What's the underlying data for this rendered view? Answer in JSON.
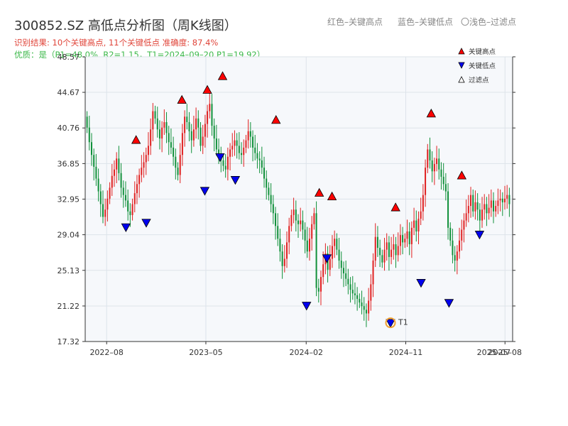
{
  "header": {
    "title": "300852.SZ 高低点分析图（周K线图）",
    "hint_red": "红色–关键高点",
    "hint_blue": "蓝色–关键低点",
    "hint_light": "〇浅色–过滤点",
    "result_line": "识别结果: 10个关键高点, 11个关键低点  准确度: 87.4%",
    "quality_line": "优质：是（P1=48.0%, R2=1.15，T1=2024–09–20 P1=19.92）"
  },
  "colors": {
    "up": "#e02020",
    "down": "#10903a",
    "high_marker": "#ff0000",
    "low_marker": "#0000ee",
    "t1": "#f0a030"
  },
  "chart_data": {
    "type": "candlestick",
    "title": "300852.SZ 高低点分析图（周K线图）",
    "ylim": [
      17.32,
      48.57
    ],
    "y_ticks": [
      "17.32",
      "21.22",
      "25.13",
      "29.04",
      "32.95",
      "36.85",
      "40.76",
      "44.67",
      "48.57"
    ],
    "x_ticks": [
      "2022–08",
      "2023–05",
      "2024–02",
      "2024–11",
      "2025–08"
    ],
    "x_tick_extra": "2025–07",
    "legend": {
      "position": "top-right",
      "items": [
        {
          "label": "关键高点",
          "marker": "up-triangle",
          "color": "#ff0000"
        },
        {
          "label": "关键低点",
          "marker": "down-triangle",
          "color": "#0000ee"
        },
        {
          "label": "过滤点",
          "marker": "up-triangle-hollow",
          "color": "#ffffff"
        }
      ]
    },
    "key_highs": [
      {
        "date": "2022-10-21",
        "value": 38.9
      },
      {
        "date": "2023-02-24",
        "value": 43.3
      },
      {
        "date": "2023-05-05",
        "value": 44.4
      },
      {
        "date": "2023-06-16",
        "value": 45.9
      },
      {
        "date": "2023-11-10",
        "value": 41.1
      },
      {
        "date": "2024-03-08",
        "value": 33.1
      },
      {
        "date": "2024-04-12",
        "value": 32.7
      },
      {
        "date": "2024-10-04",
        "value": 31.5
      },
      {
        "date": "2025-01-10",
        "value": 41.8
      },
      {
        "date": "2025-04-04",
        "value": 35.0
      }
    ],
    "key_lows": [
      {
        "date": "2022-09-23",
        "value": 30.4
      },
      {
        "date": "2022-11-18",
        "value": 30.9
      },
      {
        "date": "2023-04-28",
        "value": 34.4
      },
      {
        "date": "2023-06-09",
        "value": 38.1
      },
      {
        "date": "2023-07-21",
        "value": 35.6
      },
      {
        "date": "2024-02-02",
        "value": 21.8
      },
      {
        "date": "2024-03-29",
        "value": 27.0
      },
      {
        "date": "2024-09-20",
        "value": 19.9
      },
      {
        "date": "2024-12-13",
        "value": 24.3
      },
      {
        "date": "2025-02-28",
        "value": 22.1
      },
      {
        "date": "2025-05-23",
        "value": 29.6
      }
    ],
    "t1_point": {
      "label": "T1",
      "date": "2024-09-20",
      "value": 19.92
    },
    "candles_close": [
      40.8,
      39.2,
      37.8,
      36.5,
      35.2,
      33.8,
      32.4,
      31.0,
      31.8,
      33.0,
      34.2,
      35.5,
      36.2,
      37.4,
      35.8,
      34.2,
      33.4,
      32.8,
      31.6,
      31.2,
      32.4,
      33.6,
      34.6,
      35.6,
      36.4,
      37.0,
      37.8,
      38.8,
      40.6,
      42.6,
      41.8,
      40.6,
      39.6,
      40.8,
      41.4,
      40.2,
      39.2,
      38.6,
      37.6,
      36.4,
      35.6,
      37.8,
      40.2,
      42.0,
      41.4,
      40.4,
      39.4,
      40.6,
      41.8,
      40.8,
      38.8,
      39.8,
      41.2,
      42.6,
      43.4,
      41.0,
      39.6,
      38.4,
      37.8,
      37.2,
      36.6,
      36.2,
      37.6,
      38.4,
      38.8,
      39.4,
      38.8,
      38.0,
      37.8,
      38.6,
      39.4,
      40.4,
      39.8,
      38.6,
      38.0,
      37.4,
      37.2,
      36.4,
      35.2,
      34.2,
      33.4,
      32.4,
      31.4,
      30.0,
      28.6,
      27.2,
      25.6,
      26.4,
      28.2,
      30.0,
      31.2,
      31.8,
      30.6,
      30.2,
      30.6,
      29.6,
      28.4,
      27.2,
      28.6,
      30.2,
      31.4,
      23.2,
      22.8,
      24.4,
      25.8,
      27.0,
      25.2,
      26.4,
      27.8,
      28.6,
      27.4,
      26.2,
      25.4,
      24.8,
      24.2,
      23.6,
      23.0,
      22.6,
      22.4,
      22.0,
      21.6,
      21.2,
      20.8,
      20.4,
      21.8,
      23.6,
      26.2,
      28.8,
      27.6,
      26.8,
      26.0,
      27.4,
      28.2,
      26.6,
      27.4,
      28.0,
      26.8,
      27.8,
      29.0,
      28.2,
      28.6,
      29.4,
      28.0,
      29.8,
      30.6,
      29.4,
      30.8,
      31.6,
      33.4,
      36.4,
      38.4,
      37.2,
      36.0,
      36.8,
      37.4,
      36.2,
      35.4,
      34.6,
      33.8,
      29.8,
      28.4,
      26.8,
      26.2,
      27.2,
      28.4,
      29.6,
      30.6,
      31.4,
      32.2,
      33.4,
      31.6,
      32.6,
      31.8,
      30.6,
      31.8,
      32.4,
      31.4,
      32.0,
      32.8,
      31.6,
      32.2,
      32.8,
      33.0,
      32.6,
      33.0,
      33.4,
      32.4
    ]
  }
}
